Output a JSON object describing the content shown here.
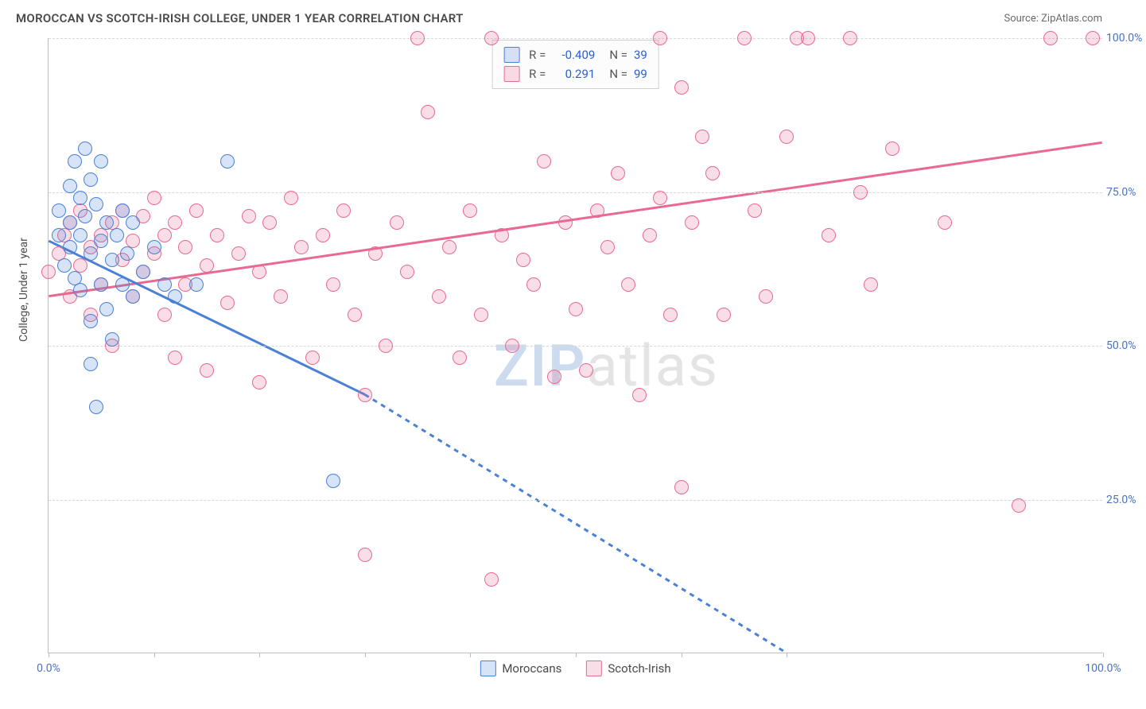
{
  "header": {
    "title": "MOROCCAN VS SCOTCH-IRISH COLLEGE, UNDER 1 YEAR CORRELATION CHART",
    "source": "Source: ZipAtlas.com"
  },
  "watermark": {
    "zip": "ZIP",
    "atlas": "atlas"
  },
  "ylabel": "College, Under 1 year",
  "chart": {
    "type": "scatter",
    "xlim": [
      0,
      100
    ],
    "ylim": [
      0,
      100
    ],
    "x_ticks": [
      0,
      10,
      20,
      30,
      40,
      50,
      60,
      70,
      100
    ],
    "x_tick_labels": {
      "0": "0.0%",
      "100": "100.0%"
    },
    "y_gridlines": [
      25,
      50,
      75,
      100
    ],
    "y_tick_labels": {
      "25": "25.0%",
      "50": "50.0%",
      "75": "75.0%",
      "100": "100.0%"
    },
    "background_color": "#ffffff",
    "grid_color": "#d8d8d8",
    "axis_color": "#bdbdbd",
    "tick_label_color": "#4a72c4",
    "marker_radius": 9,
    "marker_stroke_width": 1.5,
    "marker_fill_opacity": 0.22
  },
  "series": {
    "moroccans": {
      "label": "Moroccans",
      "color_stroke": "#4a80d6",
      "color_fill": "rgba(74,128,214,0.22)",
      "r_value": "-0.409",
      "n_value": "39",
      "regression": {
        "x1": 0,
        "y1": 67,
        "x2_solid": 30,
        "y2_solid": 42,
        "x2_dash": 70,
        "y2_dash": 0
      },
      "points": [
        [
          1,
          68
        ],
        [
          1,
          72
        ],
        [
          1.5,
          63
        ],
        [
          2,
          70
        ],
        [
          2,
          76
        ],
        [
          2,
          66
        ],
        [
          2.5,
          80
        ],
        [
          2.5,
          61
        ],
        [
          3,
          74
        ],
        [
          3,
          68
        ],
        [
          3,
          59
        ],
        [
          3.5,
          82
        ],
        [
          3.5,
          71
        ],
        [
          4,
          65
        ],
        [
          4,
          77
        ],
        [
          4,
          54
        ],
        [
          4,
          47
        ],
        [
          4.5,
          40
        ],
        [
          4.5,
          73
        ],
        [
          5,
          67
        ],
        [
          5,
          80
        ],
        [
          5,
          60
        ],
        [
          5.5,
          56
        ],
        [
          5.5,
          70
        ],
        [
          6,
          64
        ],
        [
          6,
          51
        ],
        [
          6.5,
          68
        ],
        [
          7,
          72
        ],
        [
          7,
          60
        ],
        [
          7.5,
          65
        ],
        [
          8,
          58
        ],
        [
          8,
          70
        ],
        [
          9,
          62
        ],
        [
          10,
          66
        ],
        [
          11,
          60
        ],
        [
          12,
          58
        ],
        [
          14,
          60
        ],
        [
          17,
          80
        ],
        [
          27,
          28
        ]
      ]
    },
    "scotch_irish": {
      "label": "Scotch-Irish",
      "color_stroke": "#e86a92",
      "color_fill": "rgba(232,106,146,0.22)",
      "r_value": "0.291",
      "n_value": "99",
      "regression": {
        "x1": 0,
        "y1": 58,
        "x2_solid": 100,
        "y2_solid": 83
      },
      "points": [
        [
          0,
          62
        ],
        [
          1,
          65
        ],
        [
          1.5,
          68
        ],
        [
          2,
          70
        ],
        [
          2,
          58
        ],
        [
          3,
          63
        ],
        [
          3,
          72
        ],
        [
          4,
          66
        ],
        [
          4,
          55
        ],
        [
          5,
          68
        ],
        [
          5,
          60
        ],
        [
          6,
          70
        ],
        [
          6,
          50
        ],
        [
          7,
          64
        ],
        [
          7,
          72
        ],
        [
          8,
          67
        ],
        [
          8,
          58
        ],
        [
          9,
          62
        ],
        [
          9,
          71
        ],
        [
          10,
          65
        ],
        [
          10,
          74
        ],
        [
          11,
          68
        ],
        [
          11,
          55
        ],
        [
          12,
          70
        ],
        [
          12,
          48
        ],
        [
          13,
          66
        ],
        [
          13,
          60
        ],
        [
          14,
          72
        ],
        [
          15,
          63
        ],
        [
          15,
          46
        ],
        [
          16,
          68
        ],
        [
          17,
          57
        ],
        [
          18,
          65
        ],
        [
          19,
          71
        ],
        [
          20,
          62
        ],
        [
          20,
          44
        ],
        [
          21,
          70
        ],
        [
          22,
          58
        ],
        [
          23,
          74
        ],
        [
          24,
          66
        ],
        [
          25,
          48
        ],
        [
          26,
          68
        ],
        [
          27,
          60
        ],
        [
          28,
          72
        ],
        [
          29,
          55
        ],
        [
          30,
          42
        ],
        [
          30,
          16
        ],
        [
          31,
          65
        ],
        [
          32,
          50
        ],
        [
          33,
          70
        ],
        [
          34,
          62
        ],
        [
          35,
          100
        ],
        [
          36,
          88
        ],
        [
          37,
          58
        ],
        [
          38,
          66
        ],
        [
          39,
          48
        ],
        [
          40,
          72
        ],
        [
          41,
          55
        ],
        [
          42,
          100
        ],
        [
          42,
          12
        ],
        [
          43,
          68
        ],
        [
          44,
          50
        ],
        [
          45,
          64
        ],
        [
          46,
          60
        ],
        [
          47,
          80
        ],
        [
          48,
          45
        ],
        [
          49,
          70
        ],
        [
          50,
          56
        ],
        [
          51,
          46
        ],
        [
          52,
          72
        ],
        [
          53,
          66
        ],
        [
          54,
          78
        ],
        [
          55,
          60
        ],
        [
          56,
          42
        ],
        [
          57,
          68
        ],
        [
          58,
          100
        ],
        [
          58,
          74
        ],
        [
          59,
          55
        ],
        [
          60,
          92
        ],
        [
          60,
          27
        ],
        [
          61,
          70
        ],
        [
          62,
          84
        ],
        [
          63,
          78
        ],
        [
          64,
          55
        ],
        [
          66,
          100
        ],
        [
          67,
          72
        ],
        [
          68,
          58
        ],
        [
          70,
          84
        ],
        [
          71,
          100
        ],
        [
          72,
          100
        ],
        [
          74,
          68
        ],
        [
          76,
          100
        ],
        [
          77,
          75
        ],
        [
          78,
          60
        ],
        [
          80,
          82
        ],
        [
          85,
          70
        ],
        [
          92,
          24
        ],
        [
          95,
          100
        ],
        [
          99,
          100
        ]
      ]
    }
  },
  "legend_box": {
    "r_label": "R =",
    "n_label": "N ="
  }
}
